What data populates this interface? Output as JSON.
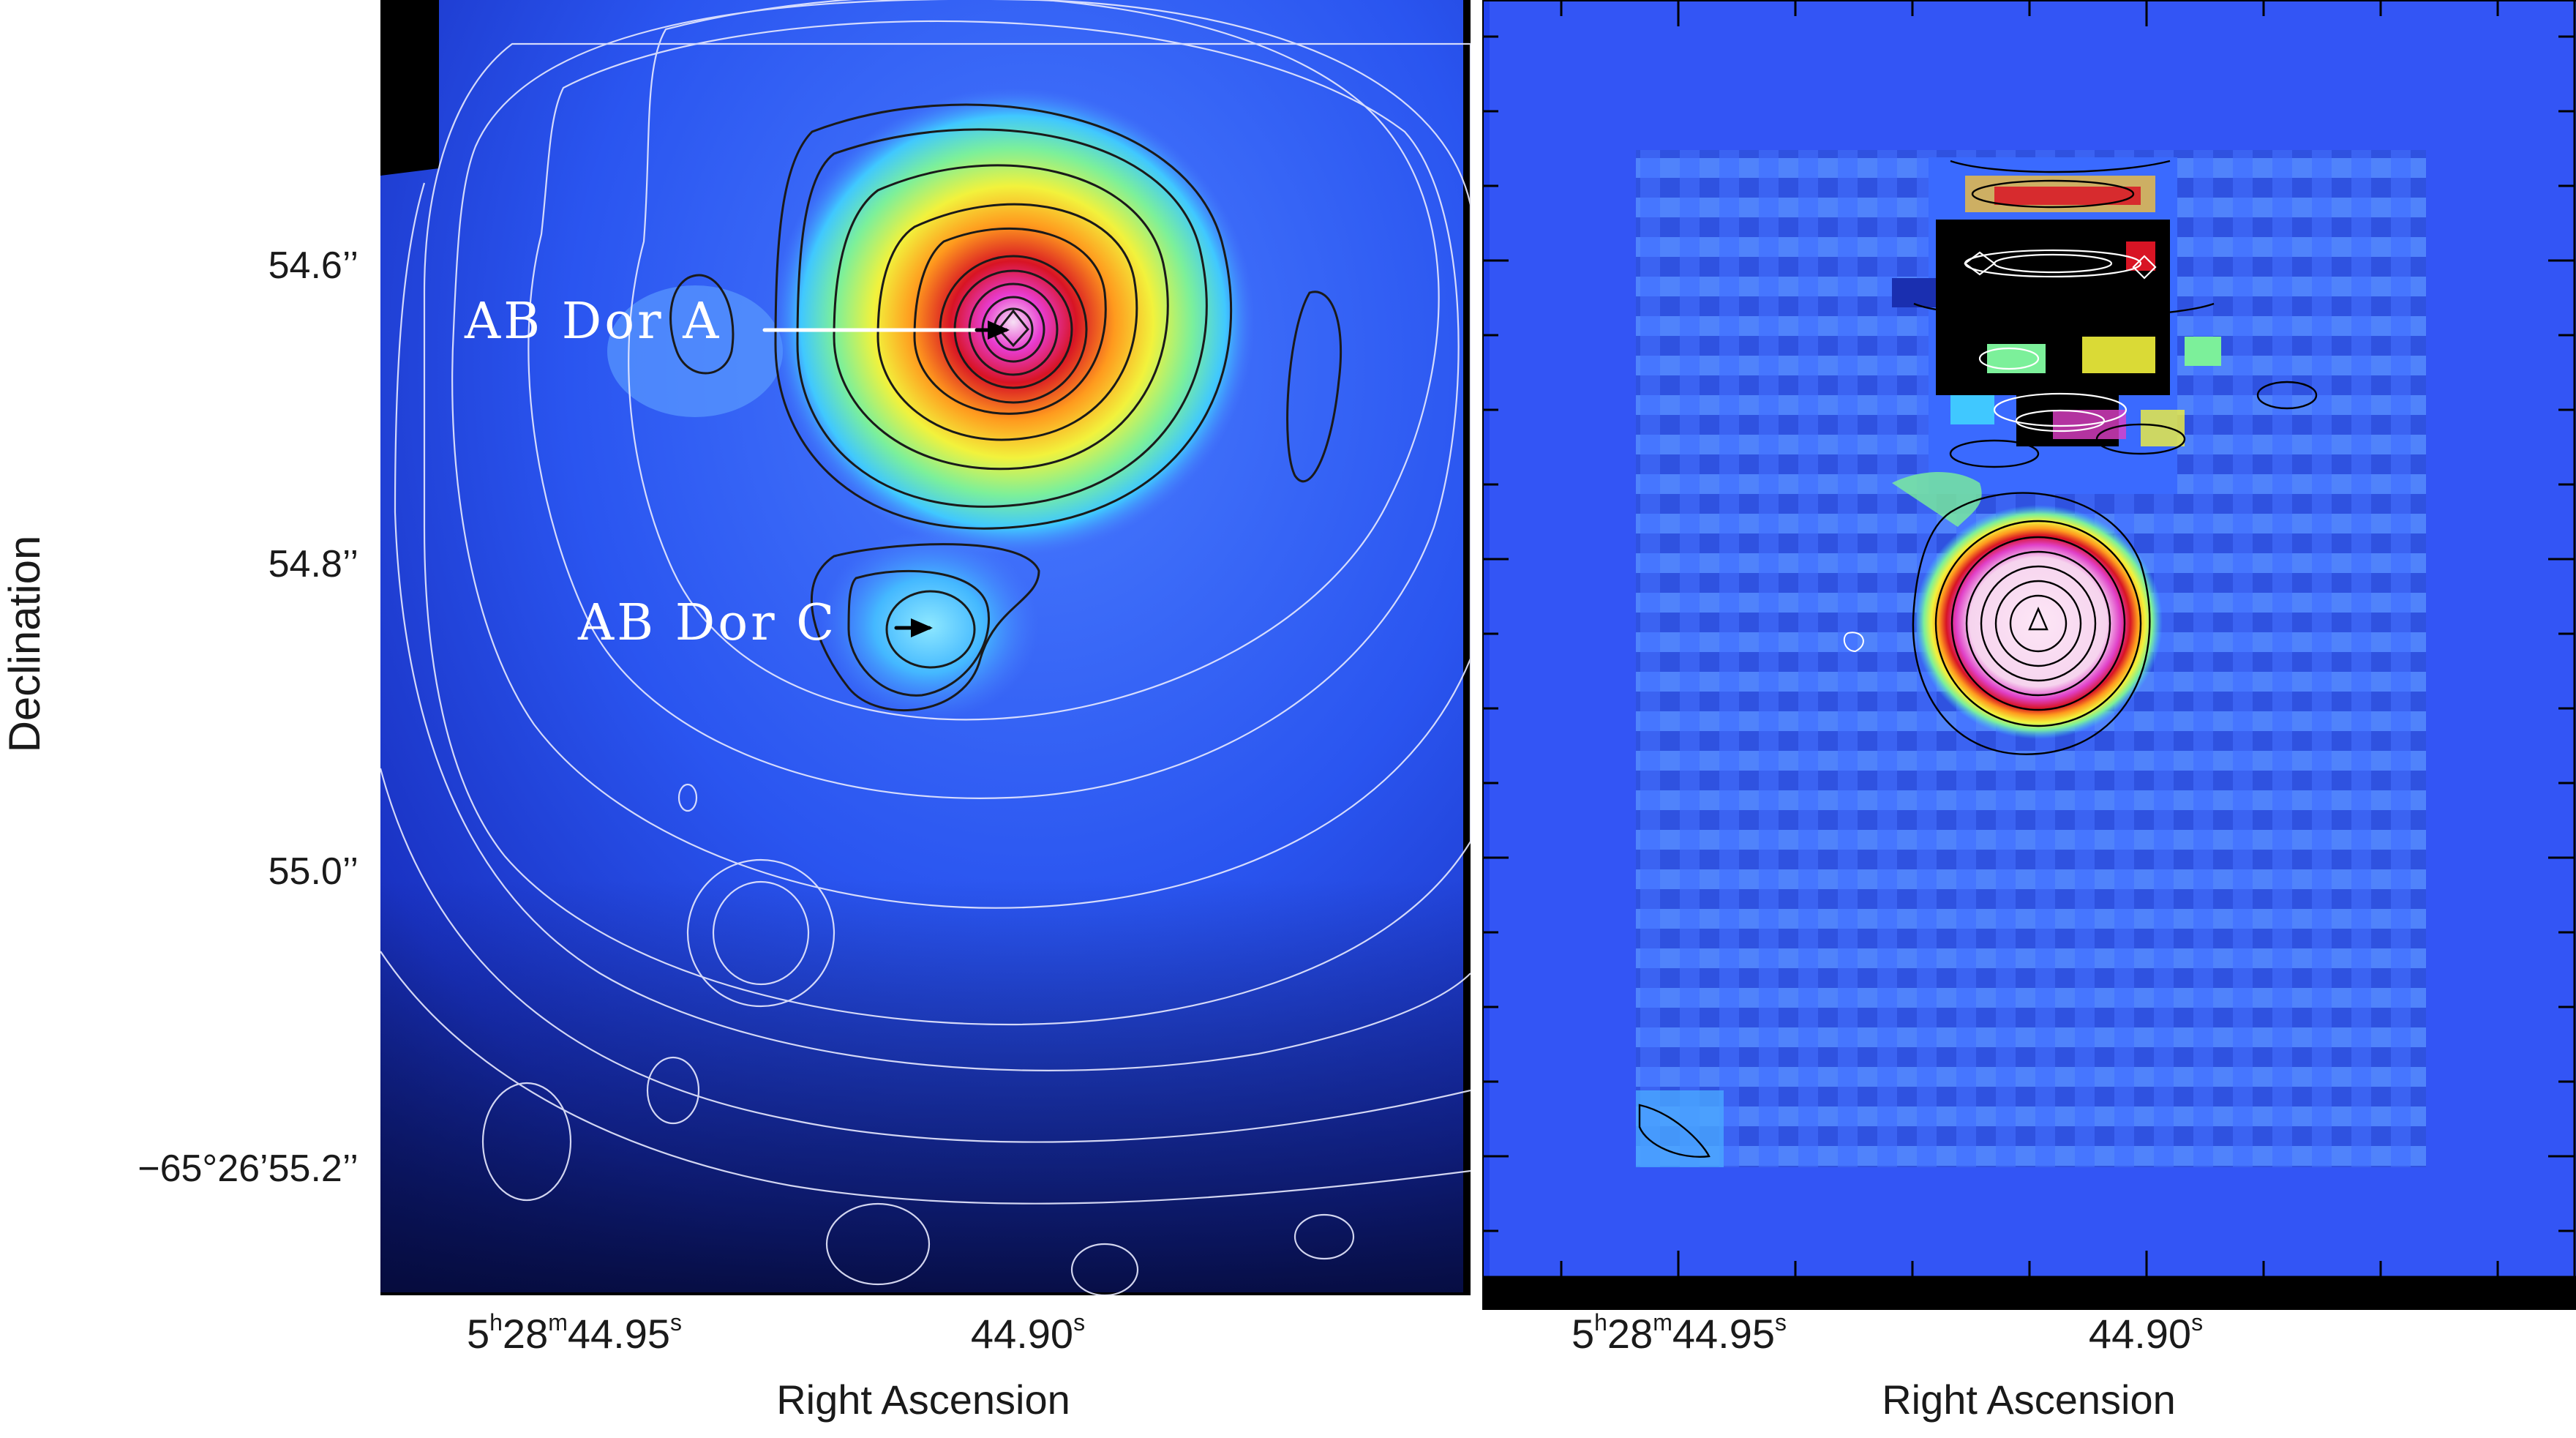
{
  "chart_data": [
    {
      "type": "heatmap",
      "panel": "left",
      "description_in_pixels_only": false,
      "xlabel": "Right Ascension",
      "ylabel": "Declination",
      "x_ticks": [
        {
          "label_parts": [
            "5",
            "h",
            "28",
            "m",
            "44.95",
            "s"
          ],
          "value": "5h28m44.95s"
        },
        {
          "label_parts": [
            "",
            "",
            "",
            "",
            "44.90",
            "s"
          ],
          "value": "5h28m44.90s"
        }
      ],
      "y_ticks": [
        "54.6’’",
        "54.8’’",
        "55.0’’",
        "−65°26’55.2’’"
      ],
      "annotations": [
        {
          "text": "AB Dor A"
        },
        {
          "text": "AB Dor C"
        }
      ],
      "colormap": [
        "#000000",
        "#0a1e9c",
        "#2a5cff",
        "#40c8ff",
        "#7cf09a",
        "#f2f23c",
        "#ff9a1e",
        "#e01428",
        "#e030d0",
        "#f4d8f0"
      ]
    },
    {
      "type": "heatmap",
      "panel": "right",
      "xlabel": "Right Ascension",
      "x_ticks": [
        {
          "label_parts": [
            "5",
            "h",
            "28",
            "m",
            "44.95",
            "s"
          ],
          "value": "5h28m44.95s"
        },
        {
          "label_parts": [
            "",
            "",
            "",
            "",
            "44.90",
            "s"
          ],
          "value": "5h28m44.90s"
        }
      ]
    }
  ],
  "labels": {
    "ytitle": "Declination",
    "xtitle_left": "Right Ascension",
    "xtitle_right": "Right Ascension",
    "ytick_1": "54.6’’",
    "ytick_2": "54.8’’",
    "ytick_3": "55.0’’",
    "ytick_4": "−65°26’55.2’’",
    "annot_a": "AB Dor A",
    "annot_c": "AB Dor C",
    "xtick_l1_h": "5",
    "xtick_l1_hs": "h",
    "xtick_l1_m": "28",
    "xtick_l1_ms": "m",
    "xtick_l1_s": "44.95",
    "xtick_l1_ss": "s",
    "xtick_l2_s": "44.90",
    "xtick_l2_ss": "s",
    "xtick_r1_h": "5",
    "xtick_r1_hs": "h",
    "xtick_r1_m": "28",
    "xtick_r1_ms": "m",
    "xtick_r1_s": "44.95",
    "xtick_r1_ss": "s",
    "xtick_r2_s": "44.90",
    "xtick_r2_ss": "s"
  }
}
